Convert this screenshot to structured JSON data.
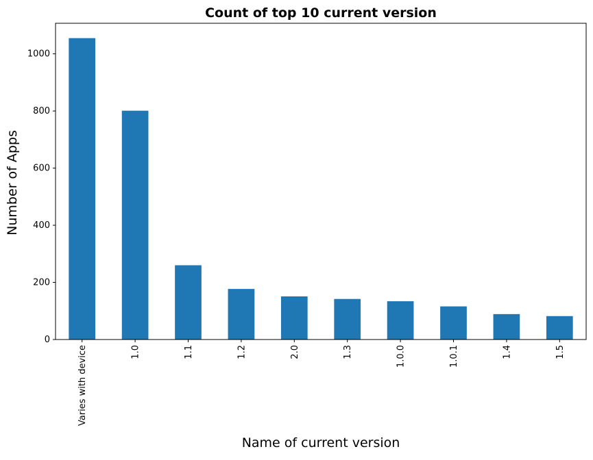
{
  "chart_data": {
    "type": "bar",
    "title": "Count of top 10 current version",
    "xlabel": "Name of current version",
    "ylabel": "Number of Apps",
    "categories": [
      "Varies with device",
      "1.0",
      "1.1",
      "1.2",
      "2.0",
      "1.3",
      "1.0.0",
      "1.0.1",
      "1.4",
      "1.5"
    ],
    "values": [
      1055,
      801,
      260,
      177,
      151,
      142,
      134,
      116,
      89,
      82
    ],
    "ylim": [
      0,
      1107
    ],
    "yticks": [
      0,
      200,
      400,
      600,
      800,
      1000
    ],
    "grid": false,
    "legend": "none",
    "bar_color": "#1f77b4"
  }
}
